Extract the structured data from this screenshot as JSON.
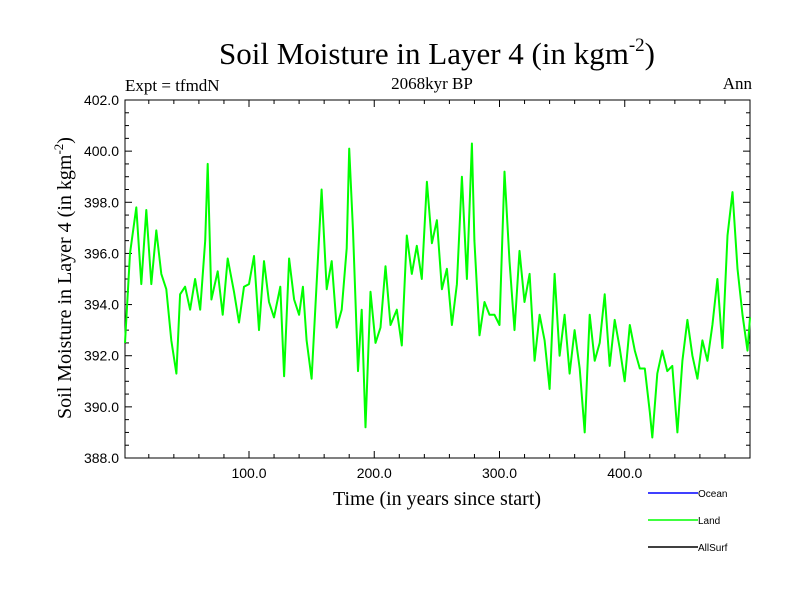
{
  "chart_data": {
    "type": "line",
    "title": "Soil Moisture in Layer 4 (in kgm",
    "title_sup": "-2",
    "title_close": ")",
    "subtitle": "2068kyr BP",
    "left_label": "Expt = tfmdN",
    "right_label": "Ann",
    "xlabel": "Time (in years since start)",
    "ylabel": "Soil Moisture in Layer 4 (in kgm",
    "ylabel_sup": "-2",
    "ylabel_close": ")",
    "xlim": [
      1,
      500
    ],
    "ylim": [
      388,
      402
    ],
    "x_ticks": [
      100,
      200,
      300,
      400
    ],
    "x_tick_labels": [
      "100.0",
      "200.0",
      "300.0",
      "400.0"
    ],
    "y_ticks": [
      388,
      390,
      392,
      394,
      396,
      398,
      400,
      402
    ],
    "y_tick_labels": [
      "388.0",
      "390.0",
      "392.0",
      "394.0",
      "396.0",
      "398.0",
      "400.0",
      "402.0"
    ],
    "legend": [
      {
        "name": "Ocean",
        "color": "#0000ff"
      },
      {
        "name": "Land",
        "color": "#00ff00"
      },
      {
        "name": "AllSurf",
        "color": "#000000"
      }
    ],
    "series": [
      {
        "name": "Land",
        "color": "#00ff00",
        "x": [
          1,
          5,
          10,
          14,
          18,
          22,
          26,
          30,
          34,
          38,
          42,
          45,
          49,
          53,
          57,
          61,
          65,
          67,
          70,
          75,
          79,
          83,
          88,
          92,
          96,
          100,
          104,
          108,
          112,
          116,
          120,
          125,
          128,
          132,
          136,
          140,
          143,
          146,
          150,
          154,
          158,
          162,
          166,
          170,
          174,
          178,
          180,
          183,
          187,
          190,
          193,
          197,
          201,
          205,
          209,
          213,
          218,
          222,
          226,
          230,
          234,
          238,
          242,
          246,
          250,
          254,
          258,
          262,
          266,
          270,
          274,
          278,
          280,
          284,
          288,
          292,
          296,
          300,
          304,
          308,
          312,
          316,
          320,
          324,
          328,
          332,
          336,
          340,
          344,
          348,
          352,
          356,
          360,
          364,
          368,
          372,
          376,
          380,
          384,
          388,
          392,
          396,
          400,
          404,
          408,
          412,
          416,
          420,
          422,
          426,
          430,
          434,
          438,
          442,
          446,
          450,
          454,
          458,
          462,
          466,
          470,
          474,
          478,
          482,
          486,
          490,
          494,
          498,
          500
        ],
        "values": [
          392.5,
          396.0,
          397.8,
          394.8,
          397.7,
          394.8,
          396.9,
          395.2,
          394.6,
          392.6,
          391.3,
          394.4,
          394.7,
          393.8,
          395.0,
          393.8,
          396.5,
          399.5,
          394.2,
          395.3,
          393.6,
          395.8,
          394.5,
          393.3,
          394.7,
          394.8,
          395.9,
          393.0,
          395.7,
          394.1,
          393.5,
          394.7,
          391.2,
          395.8,
          394.2,
          393.6,
          394.7,
          392.6,
          391.1,
          394.8,
          398.5,
          394.6,
          395.7,
          393.1,
          393.8,
          396.2,
          400.1,
          396.9,
          391.4,
          393.8,
          389.2,
          394.5,
          392.5,
          393.1,
          395.5,
          393.2,
          393.8,
          392.4,
          396.7,
          395.2,
          396.3,
          395.0,
          398.8,
          396.4,
          397.3,
          394.6,
          395.4,
          393.2,
          394.8,
          399.0,
          395.0,
          400.3,
          396.5,
          392.8,
          394.1,
          393.6,
          393.6,
          393.2,
          399.2,
          395.7,
          393.0,
          396.1,
          394.1,
          395.2,
          391.8,
          393.6,
          392.6,
          390.7,
          395.2,
          392.0,
          393.6,
          391.3,
          393.0,
          391.5,
          389.0,
          393.6,
          391.8,
          392.5,
          394.4,
          391.6,
          393.4,
          392.3,
          391.0,
          393.2,
          392.2,
          391.5,
          391.5,
          389.8,
          388.8,
          391.3,
          392.2,
          391.4,
          391.6,
          389.0,
          391.8,
          393.4,
          392.0,
          391.1,
          392.6,
          391.8,
          393.2,
          395.0,
          392.3,
          396.7,
          398.4,
          395.4,
          393.6,
          392.2,
          393.5
        ]
      }
    ]
  }
}
